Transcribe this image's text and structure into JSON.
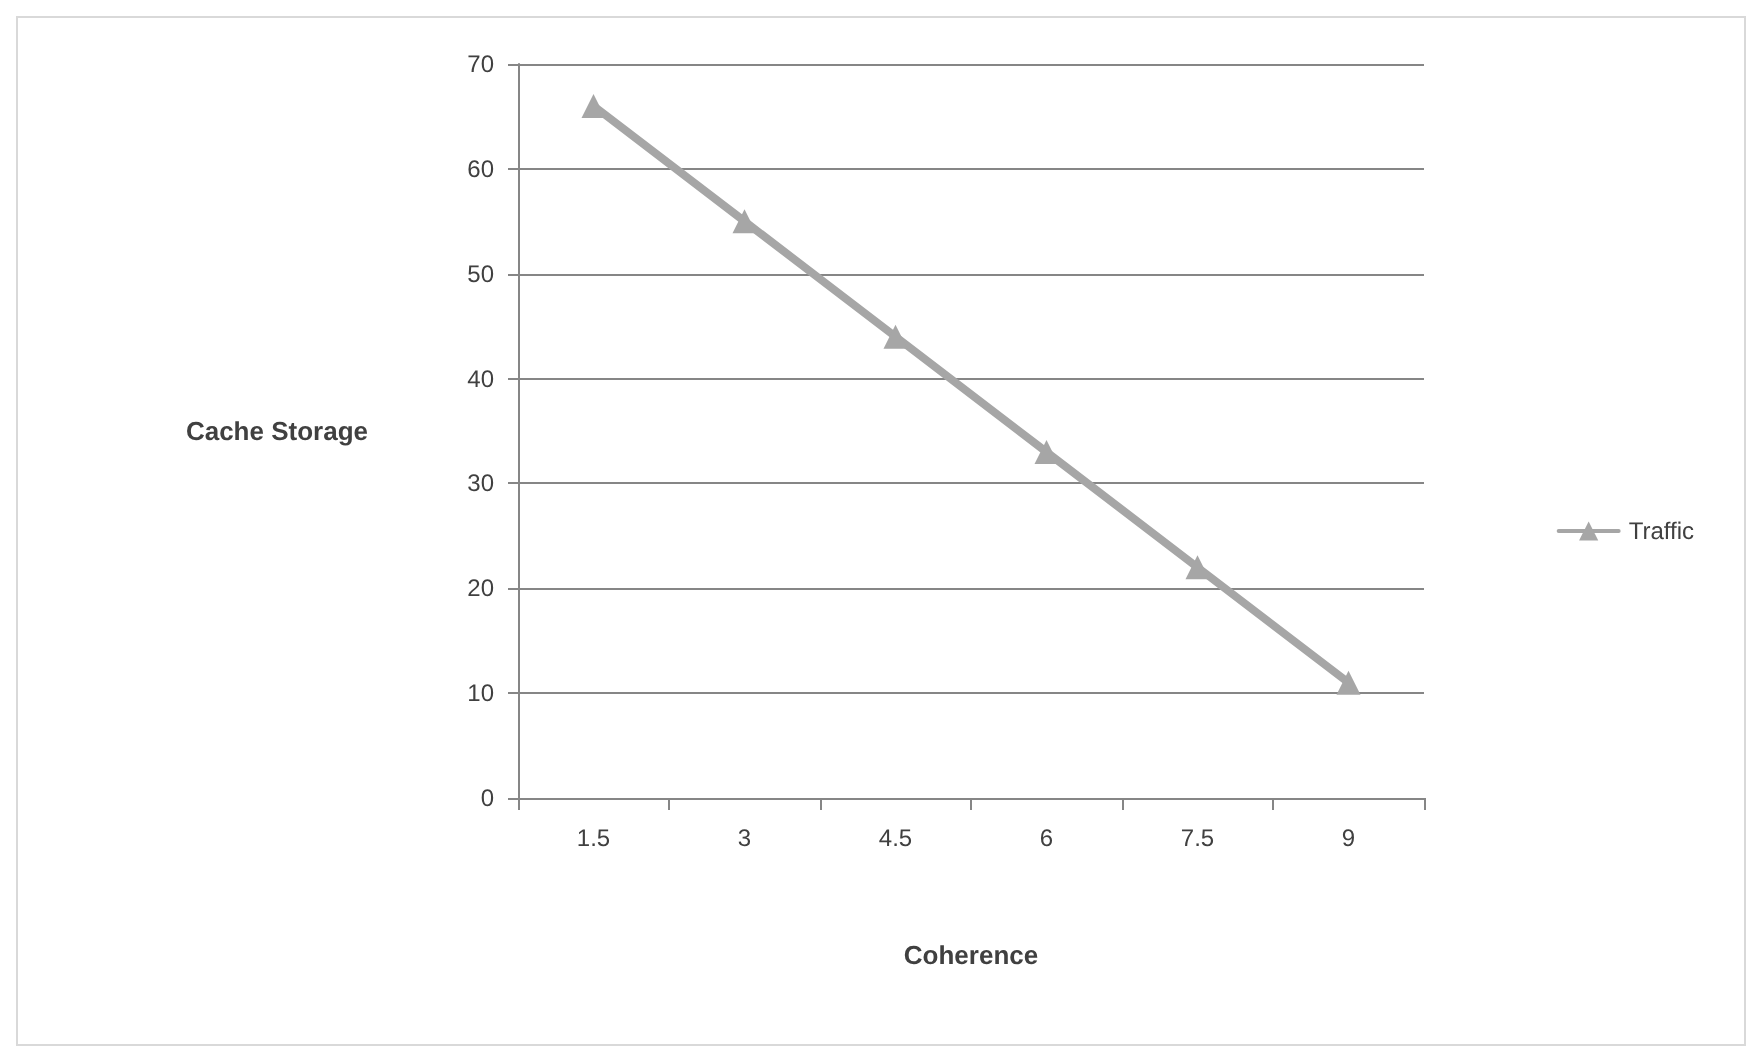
{
  "chart_data": {
    "type": "line",
    "xlabel": "Coherence",
    "ylabel": "Cache Storage",
    "categories": [
      "1.5",
      "3",
      "4.5",
      "6",
      "7.5",
      "9"
    ],
    "series": [
      {
        "name": "Traffic",
        "color": "#a6a6a6",
        "values": [
          66,
          55,
          44,
          33,
          22,
          11
        ]
      }
    ],
    "ylim": [
      0,
      70
    ],
    "yticks": [
      0,
      10,
      20,
      30,
      40,
      50,
      60,
      70
    ],
    "grid": "y",
    "legend": "right",
    "marker": "triangle",
    "line_style": "solid"
  }
}
